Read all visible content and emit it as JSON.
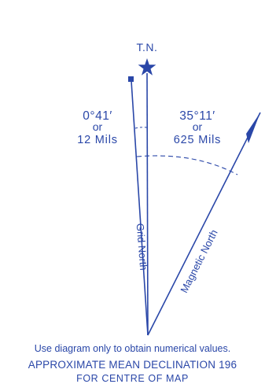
{
  "true_north": {
    "label": "T.N."
  },
  "grid_north": {
    "label": "Grid North",
    "angle_degrees": "0°41′",
    "or": "or",
    "mils": "12 Mils"
  },
  "magnetic_north": {
    "label": "Magnetic North",
    "angle_degrees": "35°11′",
    "or": "or",
    "mils": "625 Mils"
  },
  "caption": {
    "note": "Use diagram only to obtain numerical values.",
    "title": "APPROXIMATE MEAN DECLINATION 196",
    "subtitle": "FOR CENTRE OF MAP"
  },
  "colors": {
    "ink": "#2a47a8"
  }
}
